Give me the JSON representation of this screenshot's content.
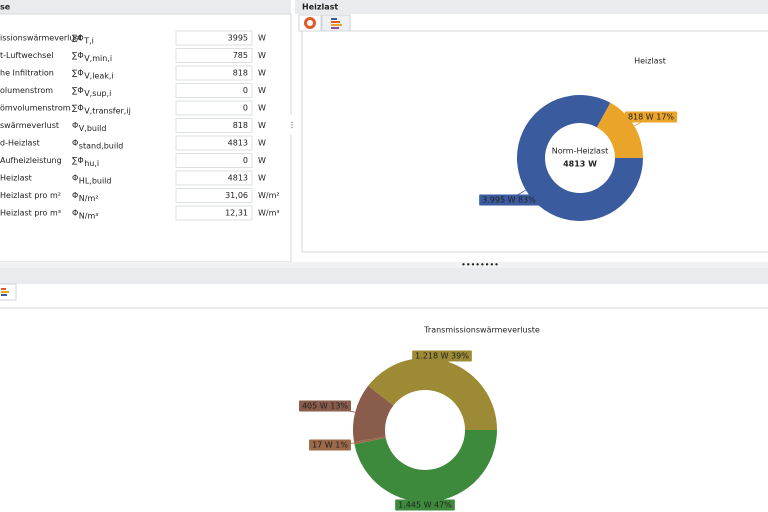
{
  "left_panel": {
    "title": "se",
    "rows": [
      [
        "issionswärmeverlust",
        "∑Φ",
        "T,i",
        "3995",
        "W"
      ],
      [
        "t-Luftwechsel",
        "∑Φ",
        "V,min,i",
        "785",
        "W"
      ],
      [
        "he Infiltration",
        "∑Φ",
        "V,leak,i",
        "818",
        "W"
      ],
      [
        "olumenstrom",
        "∑Φ",
        "V,sup,i",
        "0",
        "W"
      ],
      [
        "ömvolumenstrom",
        "∑Φ",
        "V,transfer,ij",
        "0",
        "W"
      ],
      [
        "swärmeverlust",
        "Φ",
        "V,build",
        "818",
        "W"
      ],
      [
        "d-Heizlast",
        "Φ",
        "stand,build",
        "4813",
        "W"
      ],
      [
        "Aufheizleistung",
        "∑Φ",
        "hu,i",
        "0",
        "W"
      ],
      [
        "Heizlast",
        "Φ",
        "HL,build",
        "4813",
        "W"
      ],
      [
        "Heizlast pro m²",
        "Φ",
        "N/m²",
        "31,06",
        "W/m²"
      ],
      [
        "Heizlast pro m³",
        "Φ",
        "N/m³",
        "12,31",
        "W/m³"
      ]
    ]
  },
  "right_panel": {
    "title": "Heizlast"
  },
  "chart_data": [
    {
      "type": "donut",
      "title": "Heizlast",
      "center_label": "Norm-Heizlast",
      "center_value": "4813 W",
      "values": [
        3995,
        818
      ],
      "value_labels": [
        "3.995 W 83%",
        "818 W 17%"
      ],
      "colors": [
        "#3a5c9f",
        "#eaa42a"
      ]
    },
    {
      "type": "donut",
      "title": "Transmissionswärmeverluste",
      "values": [
        1445,
        17,
        405,
        1218
      ],
      "value_labels": [
        "1.445 W 47%",
        "17 W 1%",
        "405 W 13%",
        "1.218 W 39%"
      ],
      "colors": [
        "#3e8a3c",
        "#9b6848",
        "#8a5c4c",
        "#9c8a34"
      ]
    }
  ]
}
